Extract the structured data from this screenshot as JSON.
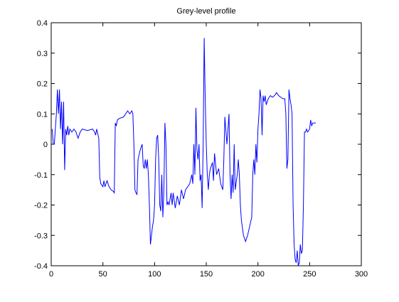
{
  "chart_data": {
    "type": "line",
    "title": "Grey-level profile",
    "x": [
      1,
      2,
      3,
      4,
      5,
      6,
      7,
      8,
      9,
      10,
      11,
      12,
      13,
      14,
      15,
      16,
      17,
      18,
      20,
      22,
      24,
      26,
      28,
      30,
      35,
      40,
      42,
      43,
      44,
      46,
      47,
      48,
      50,
      51,
      52,
      54,
      56,
      58,
      60,
      61,
      62,
      63,
      64,
      66,
      70,
      72,
      74,
      76,
      78,
      79,
      80,
      81,
      82,
      83,
      84,
      86,
      88,
      89,
      90,
      91,
      92,
      93,
      94,
      95,
      96,
      97,
      98,
      99,
      100,
      101,
      102,
      103,
      104,
      105,
      106,
      107,
      108,
      109,
      110,
      111,
      112,
      113,
      114,
      115,
      116,
      117,
      118,
      120,
      122,
      124,
      126,
      128,
      130,
      132,
      134,
      136,
      137,
      138,
      139,
      140,
      141,
      142,
      143,
      144,
      145,
      146,
      147,
      148,
      149,
      150,
      151,
      152,
      153,
      154,
      156,
      157,
      158,
      160,
      162,
      164,
      166,
      167,
      168,
      170,
      172,
      173,
      174,
      175,
      176,
      177,
      178,
      180,
      181,
      182,
      183,
      184,
      186,
      188,
      190,
      192,
      194,
      195,
      196,
      197,
      198,
      199,
      200,
      201,
      202,
      203,
      204,
      205,
      206,
      207,
      208,
      210,
      212,
      214,
      216,
      218,
      220,
      222,
      224,
      226,
      227,
      228,
      229,
      230,
      231,
      232,
      233,
      234,
      235,
      236,
      237,
      238,
      239,
      240,
      241,
      242,
      243,
      244,
      245,
      246,
      247,
      248,
      250,
      251,
      252,
      253,
      255,
      256
    ],
    "values": [
      0.05,
      0.0,
      0.0,
      0.05,
      0.1,
      0.18,
      0.1,
      0.18,
      0.05,
      0.14,
      0.0,
      0.14,
      -0.085,
      0.05,
      0.03,
      0.06,
      0.03,
      0.05,
      0.04,
      0.05,
      0.04,
      0.02,
      0.04,
      0.05,
      0.045,
      0.05,
      0.04,
      0.03,
      0.05,
      0.02,
      -0.11,
      -0.13,
      -0.14,
      -0.12,
      -0.14,
      -0.12,
      -0.14,
      -0.15,
      -0.155,
      -0.16,
      0.07,
      0.06,
      0.08,
      0.085,
      0.09,
      0.1,
      0.11,
      0.1,
      0.11,
      0.1,
      0.0,
      -0.15,
      -0.16,
      -0.165,
      -0.05,
      -0.02,
      0.0,
      -0.07,
      -0.08,
      -0.05,
      -0.08,
      -0.05,
      -0.1,
      -0.2,
      -0.33,
      -0.3,
      -0.27,
      -0.25,
      -0.2,
      -0.05,
      0.02,
      0.03,
      -0.05,
      -0.2,
      -0.22,
      -0.1,
      -0.24,
      -0.15,
      0.07,
      0.0,
      -0.2,
      -0.19,
      -0.2,
      -0.18,
      -0.16,
      -0.2,
      -0.16,
      -0.21,
      -0.17,
      -0.2,
      -0.15,
      -0.18,
      -0.15,
      -0.14,
      -0.13,
      -0.1,
      -0.13,
      0.0,
      -0.1,
      0.12,
      -0.02,
      -0.05,
      0.0,
      -0.12,
      -0.1,
      -0.21,
      0.0,
      0.35,
      0.15,
      0.0,
      -0.1,
      -0.15,
      -0.1,
      -0.08,
      -0.06,
      -0.12,
      -0.03,
      -0.1,
      -0.08,
      -0.13,
      -0.15,
      -0.05,
      0.09,
      0.0,
      0.1,
      -0.1,
      -0.18,
      -0.1,
      -0.16,
      0.0,
      -0.15,
      -0.1,
      -0.05,
      -0.1,
      -0.2,
      -0.25,
      -0.3,
      -0.32,
      -0.3,
      -0.27,
      -0.24,
      -0.1,
      -0.05,
      -0.1,
      0.0,
      -0.06,
      0.05,
      0.1,
      0.18,
      0.15,
      0.03,
      0.16,
      0.14,
      0.16,
      0.13,
      0.15,
      0.16,
      0.155,
      0.16,
      0.17,
      0.16,
      0.155,
      0.15,
      0.15,
      0.1,
      -0.08,
      -0.05,
      0.18,
      0.15,
      0.13,
      0.1,
      -0.2,
      -0.33,
      -0.38,
      -0.39,
      -0.35,
      -0.4,
      -0.39,
      -0.33,
      -0.36,
      -0.35,
      -0.2,
      0.04,
      0.04,
      0.05,
      0.04,
      0.05,
      0.08,
      0.06,
      0.07,
      0.07,
      0.07
    ],
    "color": "#0000ff",
    "xlim": [
      0,
      300
    ],
    "xticks": [
      0,
      50,
      100,
      150,
      200,
      250,
      300
    ],
    "ylim": [
      -0.4,
      0.4
    ],
    "yticks": [
      -0.4,
      -0.3,
      -0.2,
      -0.1,
      0,
      0.1,
      0.2,
      0.3,
      0.4
    ],
    "grid": false
  }
}
